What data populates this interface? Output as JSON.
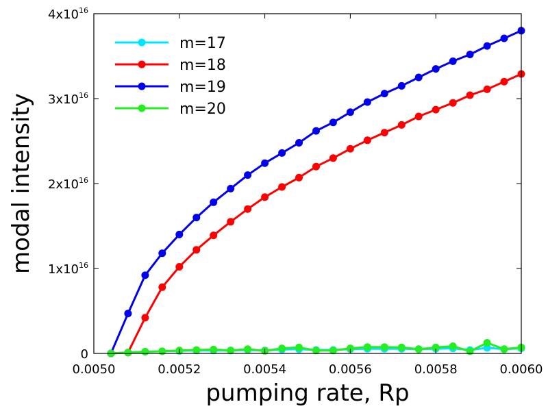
{
  "chart_data": {
    "type": "line",
    "xlabel": "pumping rate, Rp",
    "ylabel": "modal intensity",
    "xlim": [
      0.005,
      0.006
    ],
    "ylim": [
      0,
      4e+16
    ],
    "grid": false,
    "legend_position": "top-left",
    "x_ticks": [
      {
        "value": 0.005,
        "label": "0.0050"
      },
      {
        "value": 0.0052,
        "label": "0.0052"
      },
      {
        "value": 0.0054,
        "label": "0.0054"
      },
      {
        "value": 0.0056,
        "label": "0.0056"
      },
      {
        "value": 0.0058,
        "label": "0.0058"
      },
      {
        "value": 0.006,
        "label": "0.0060"
      }
    ],
    "y_ticks": [
      {
        "value": 0,
        "mant": "0",
        "exp": ""
      },
      {
        "value": 1e+16,
        "mant": "1x10",
        "exp": "16"
      },
      {
        "value": 2e+16,
        "mant": "2x10",
        "exp": "16"
      },
      {
        "value": 3e+16,
        "mant": "3x10",
        "exp": "16"
      },
      {
        "value": 4e+16,
        "mant": "4x10",
        "exp": "16"
      }
    ],
    "x": [
      0.00504,
      0.00508,
      0.00512,
      0.00516,
      0.0052,
      0.00524,
      0.00528,
      0.00532,
      0.00536,
      0.0054,
      0.00544,
      0.00548,
      0.00552,
      0.00556,
      0.0056,
      0.00564,
      0.00568,
      0.00572,
      0.00576,
      0.0058,
      0.00584,
      0.00588,
      0.00592,
      0.00596,
      0.006
    ],
    "series": [
      {
        "name": "m=17",
        "color": "#00e5ff",
        "values": [
          0,
          100000000000000.0,
          200000000000000.0,
          250000000000000.0,
          300000000000000.0,
          350000000000000.0,
          350000000000000.0,
          350000000000000.0,
          400000000000000.0,
          350000000000000.0,
          450000000000000.0,
          500000000000000.0,
          400000000000000.0,
          400000000000000.0,
          500000000000000.0,
          550000000000000.0,
          550000000000000.0,
          550000000000000.0,
          500000000000000.0,
          550000000000000.0,
          600000000000000.0,
          400000000000000.0,
          650000000000000.0,
          500000000000000.0,
          600000000000000.0
        ]
      },
      {
        "name": "m=18",
        "color": "#ff0000",
        "values": [
          0,
          100000000000000.0,
          4200000000000000.0,
          7800000000000000.0,
          1.02e+16,
          1.22e+16,
          1.39e+16,
          1.55e+16,
          1.7e+16,
          1.84e+16,
          1.96e+16,
          2.07e+16,
          2.2e+16,
          2.3e+16,
          2.41e+16,
          2.51e+16,
          2.6e+16,
          2.69e+16,
          2.79e+16,
          2.87e+16,
          2.95e+16,
          3.04e+16,
          3.11e+16,
          3.2e+16,
          3.29e+16
        ]
      },
      {
        "name": "m=19",
        "color": "#0000ee",
        "values": [
          0,
          4700000000000000.0,
          9200000000000000.0,
          1.18e+16,
          1.4e+16,
          1.6e+16,
          1.78e+16,
          1.94e+16,
          2.1e+16,
          2.24e+16,
          2.36e+16,
          2.48e+16,
          2.62e+16,
          2.72e+16,
          2.84e+16,
          2.96e+16,
          3.06e+16,
          3.15e+16,
          3.25e+16,
          3.35e+16,
          3.44e+16,
          3.52e+16,
          3.62e+16,
          3.71e+16,
          3.8e+16
        ]
      },
      {
        "name": "m=20",
        "color": "#22ee22",
        "values": [
          0,
          100000000000000.0,
          200000000000000.0,
          250000000000000.0,
          350000000000000.0,
          400000000000000.0,
          450000000000000.0,
          350000000000000.0,
          500000000000000.0,
          300000000000000.0,
          600000000000000.0,
          700000000000000.0,
          350000000000000.0,
          350000000000000.0,
          600000000000000.0,
          750000000000000.0,
          750000000000000.0,
          700000000000000.0,
          500000000000000.0,
          700000000000000.0,
          850000000000000.0,
          250000000000000.0,
          1250000000000000.0,
          500000000000000.0,
          700000000000000.0
        ]
      }
    ]
  }
}
